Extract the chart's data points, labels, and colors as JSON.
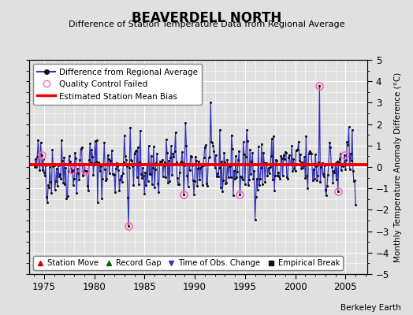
{
  "title": "BEAVERDELL NORTH",
  "subtitle": "Difference of Station Temperature Data from Regional Average",
  "ylabel": "Monthly Temperature Anomaly Difference (°C)",
  "xlabel_ticks": [
    1975,
    1980,
    1985,
    1990,
    1995,
    2000,
    2005
  ],
  "ylim": [
    -5,
    5
  ],
  "xlim": [
    1973.5,
    2007.2
  ],
  "bias_line": 0.1,
  "line_color": "#3333bb",
  "dot_color": "#111111",
  "bias_color": "#ee0000",
  "qc_color": "#ff69b4",
  "background_color": "#e0e0e0",
  "plot_bg_color": "#e0e0e0",
  "grid_color": "#ffffff",
  "footer": "Berkeley Earth",
  "legend1_labels": [
    "Difference from Regional Average",
    "Quality Control Failed",
    "Estimated Station Mean Bias"
  ],
  "legend2_labels": [
    "Station Move",
    "Record Gap",
    "Time of Obs. Change",
    "Empirical Break"
  ],
  "legend2_colors": [
    "#cc0000",
    "#006600",
    "#3333bb",
    "#111111"
  ],
  "legend2_markers": [
    "^",
    "^",
    "v",
    "s"
  ],
  "seed": 42,
  "n_points": 384,
  "start_year": 1974.083,
  "qc_failed_indices": [
    8,
    45,
    60,
    112,
    178,
    245,
    340,
    362,
    370
  ],
  "qc_failed_values": [
    0.55,
    -0.15,
    -0.2,
    -2.75,
    -1.3,
    -1.3,
    3.8,
    -1.15,
    0.55
  ]
}
